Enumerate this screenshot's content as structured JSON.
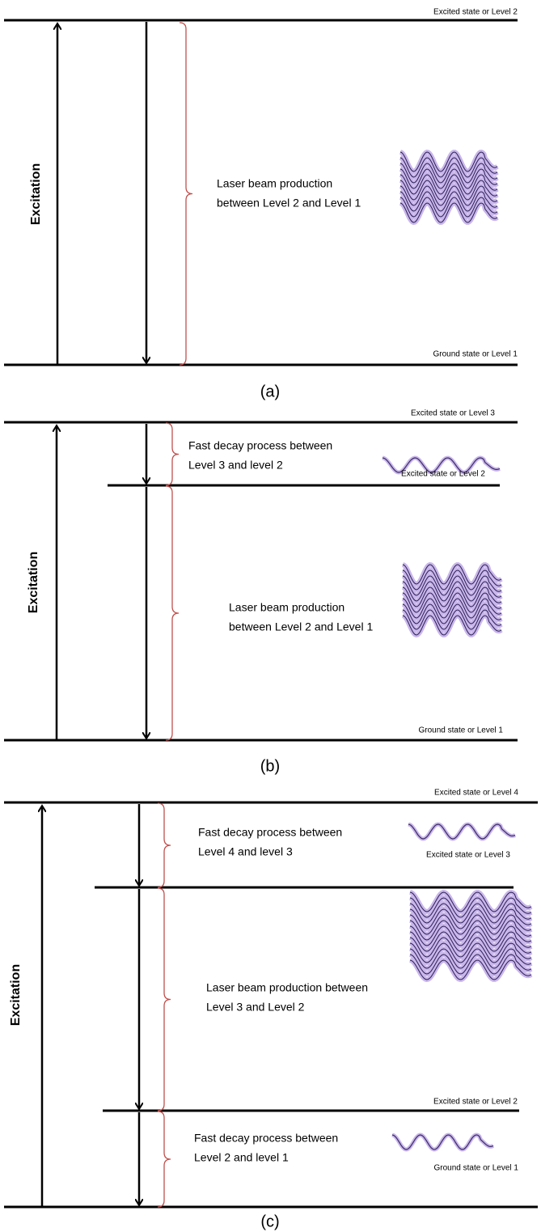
{
  "panels": [
    {
      "caption": "(a)",
      "excitation": "Excitation",
      "levels": [
        "Excited state or Level 2",
        "Ground state or Level 1"
      ],
      "processes": [
        [
          "Laser beam production",
          "between Level 2 and Level  1"
        ]
      ]
    },
    {
      "caption": "(b)",
      "excitation": "Excitation",
      "levels": [
        "Excited state or Level 3",
        "Excited state or Level 2",
        "Ground state or Level 1"
      ],
      "processes": [
        [
          "Fast decay process  between",
          "Level 3 and level 2"
        ],
        [
          "Laser beam production",
          "between Level 2 and Level  1"
        ]
      ]
    },
    {
      "caption": "(c)",
      "excitation": "Excitation",
      "levels": [
        "Excited state or Level 4",
        "Excited state or Level 3",
        "Excited state or Level 2",
        "Ground state or Level 1"
      ],
      "processes": [
        [
          "Fast decay process  between",
          "Level 4 and level 3"
        ],
        [
          "Laser beam production between",
          "Level 3 and Level  2"
        ],
        [
          "Fast decay process  between",
          "Level 2 and level 1"
        ]
      ]
    }
  ]
}
